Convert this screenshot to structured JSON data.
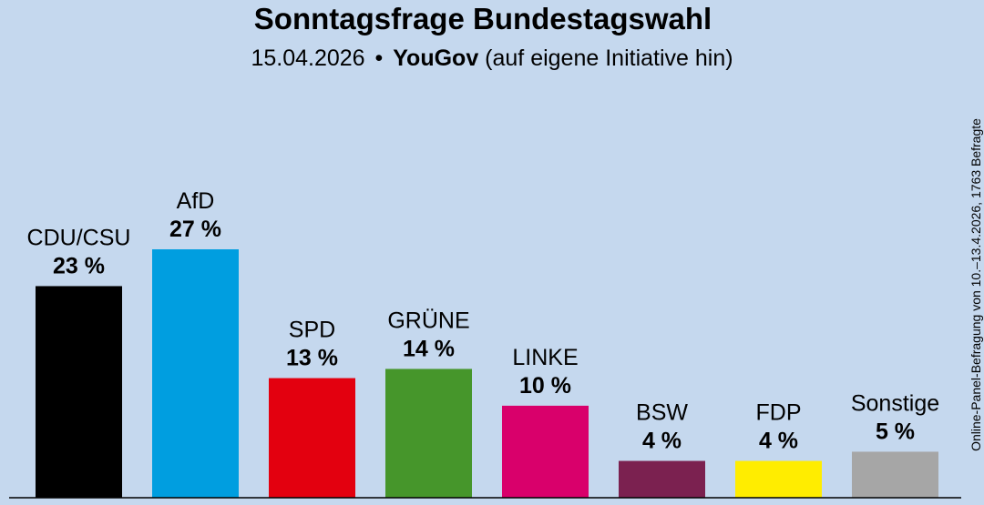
{
  "header": {
    "title": "Sonntagsfrage Bundestagswahl",
    "date": "15.04.2026",
    "separator": "•",
    "institute": "YouGov",
    "note": "(auf eigene Initiative hin)"
  },
  "footnote": "Online-Panel-Befragung von 10.–13.4.2026, 1763 Befragte",
  "chart_data": {
    "type": "bar",
    "title": "Sonntagsfrage Bundestagswahl",
    "categories": [
      "CDU/CSU",
      "AfD",
      "SPD",
      "GRÜNE",
      "LINKE",
      "BSW",
      "FDP",
      "Sonstige"
    ],
    "values": [
      23,
      27,
      13,
      14,
      10,
      4,
      4,
      5
    ],
    "value_labels": [
      "23 %",
      "27 %",
      "13 %",
      "14 %",
      "10 %",
      "4 %",
      "4 %",
      "5 %"
    ],
    "colors": [
      "#000000",
      "#009ee0",
      "#e3000f",
      "#46962b",
      "#d9006b",
      "#7b2150",
      "#ffed00",
      "#a6a6a6"
    ],
    "xlabel": "",
    "ylabel": "",
    "ylim": [
      0,
      27
    ],
    "grid": false,
    "legend": "none"
  }
}
